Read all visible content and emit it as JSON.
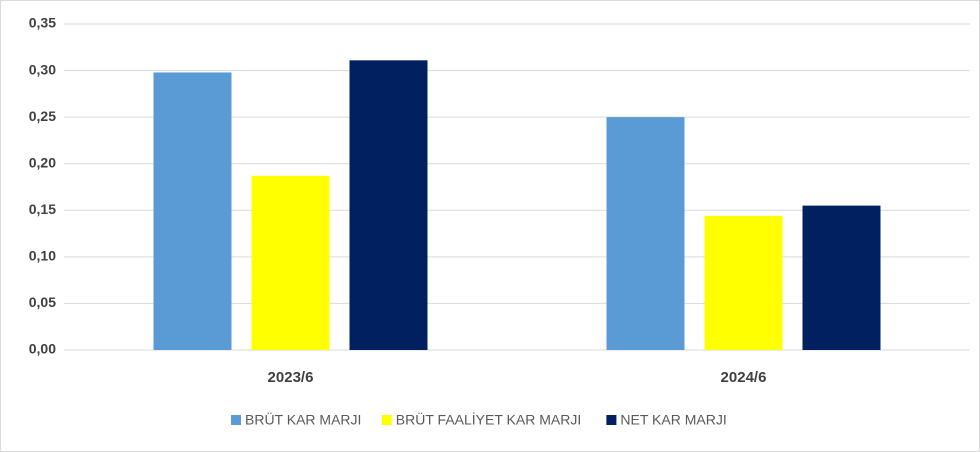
{
  "chart_data": {
    "type": "bar",
    "categories": [
      "2023/6",
      "2024/6"
    ],
    "series": [
      {
        "name": "BRÜT KAR MARJI",
        "color": "#5b9bd5",
        "values": [
          0.298,
          0.25
        ]
      },
      {
        "name": "BRÜT FAALİYET KAR MARJI",
        "color": "#ffff00",
        "values": [
          0.187,
          0.144
        ]
      },
      {
        "name": "NET KAR MARJI",
        "color": "#002060",
        "values": [
          0.311,
          0.155
        ]
      }
    ],
    "ylim": [
      0,
      0.35
    ],
    "yticks": [
      {
        "value": 0,
        "label": "0,00"
      },
      {
        "value": 0.05,
        "label": "0,05"
      },
      {
        "value": 0.1,
        "label": "0,10"
      },
      {
        "value": 0.15,
        "label": "0,15"
      },
      {
        "value": 0.2,
        "label": "0,20"
      },
      {
        "value": 0.25,
        "label": "0,25"
      },
      {
        "value": 0.3,
        "label": "0,30"
      },
      {
        "value": 0.35,
        "label": "0,35"
      }
    ],
    "grid": true,
    "legend": "bottom"
  }
}
